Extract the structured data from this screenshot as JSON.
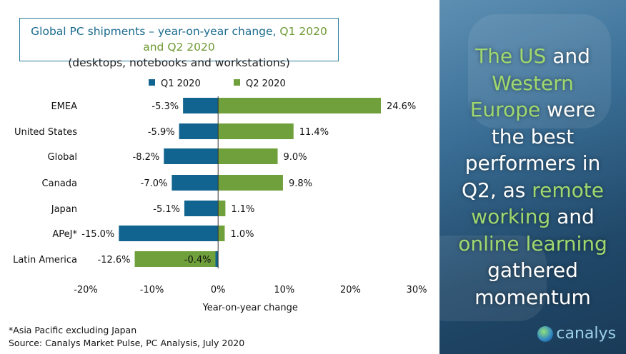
{
  "chart_data": {
    "type": "bar",
    "orientation": "horizontal",
    "title_part1": "Global PC shipments – year-on-year change, ",
    "title_part2": "Q1 2020 and Q2 2020",
    "subtitle": "(desktops, notebooks and workstations)",
    "categories": [
      "EMEA",
      "United States",
      "Global",
      "Canada",
      "Japan",
      "APeJ*",
      "Latin America"
    ],
    "series": [
      {
        "name": "Q1 2020",
        "color": "#11648f",
        "values": [
          -5.3,
          -5.9,
          -8.2,
          -7.0,
          -5.1,
          -15.0,
          -0.4
        ]
      },
      {
        "name": "Q2 2020",
        "color": "#70a03c",
        "values": [
          24.6,
          11.4,
          9.0,
          9.8,
          1.1,
          1.0,
          -12.6
        ]
      }
    ],
    "xlabel": "Year-on-year change",
    "xlim": [
      -20,
      30
    ],
    "xticks": [
      "-20%",
      "-10%",
      "0%",
      "10%",
      "20%",
      "30%"
    ],
    "legend": "top",
    "grid": false
  },
  "footnotes": [
    "*Asia Pacific excluding Japan",
    "Source: Canalys Market Pulse, PC Analysis, July 2020"
  ],
  "panel": {
    "message": [
      [
        "The US",
        "g"
      ],
      [
        " and ",
        ""
      ],
      [
        "Western",
        "g"
      ],
      [
        " ",
        ""
      ],
      [
        "Europe",
        "g"
      ],
      [
        " were the best performers in Q2, as ",
        ""
      ],
      [
        "remote working",
        "g"
      ],
      [
        " and ",
        ""
      ],
      [
        "online learning",
        "g"
      ],
      [
        " gathered momentum",
        ""
      ]
    ],
    "logo": "canalys"
  }
}
